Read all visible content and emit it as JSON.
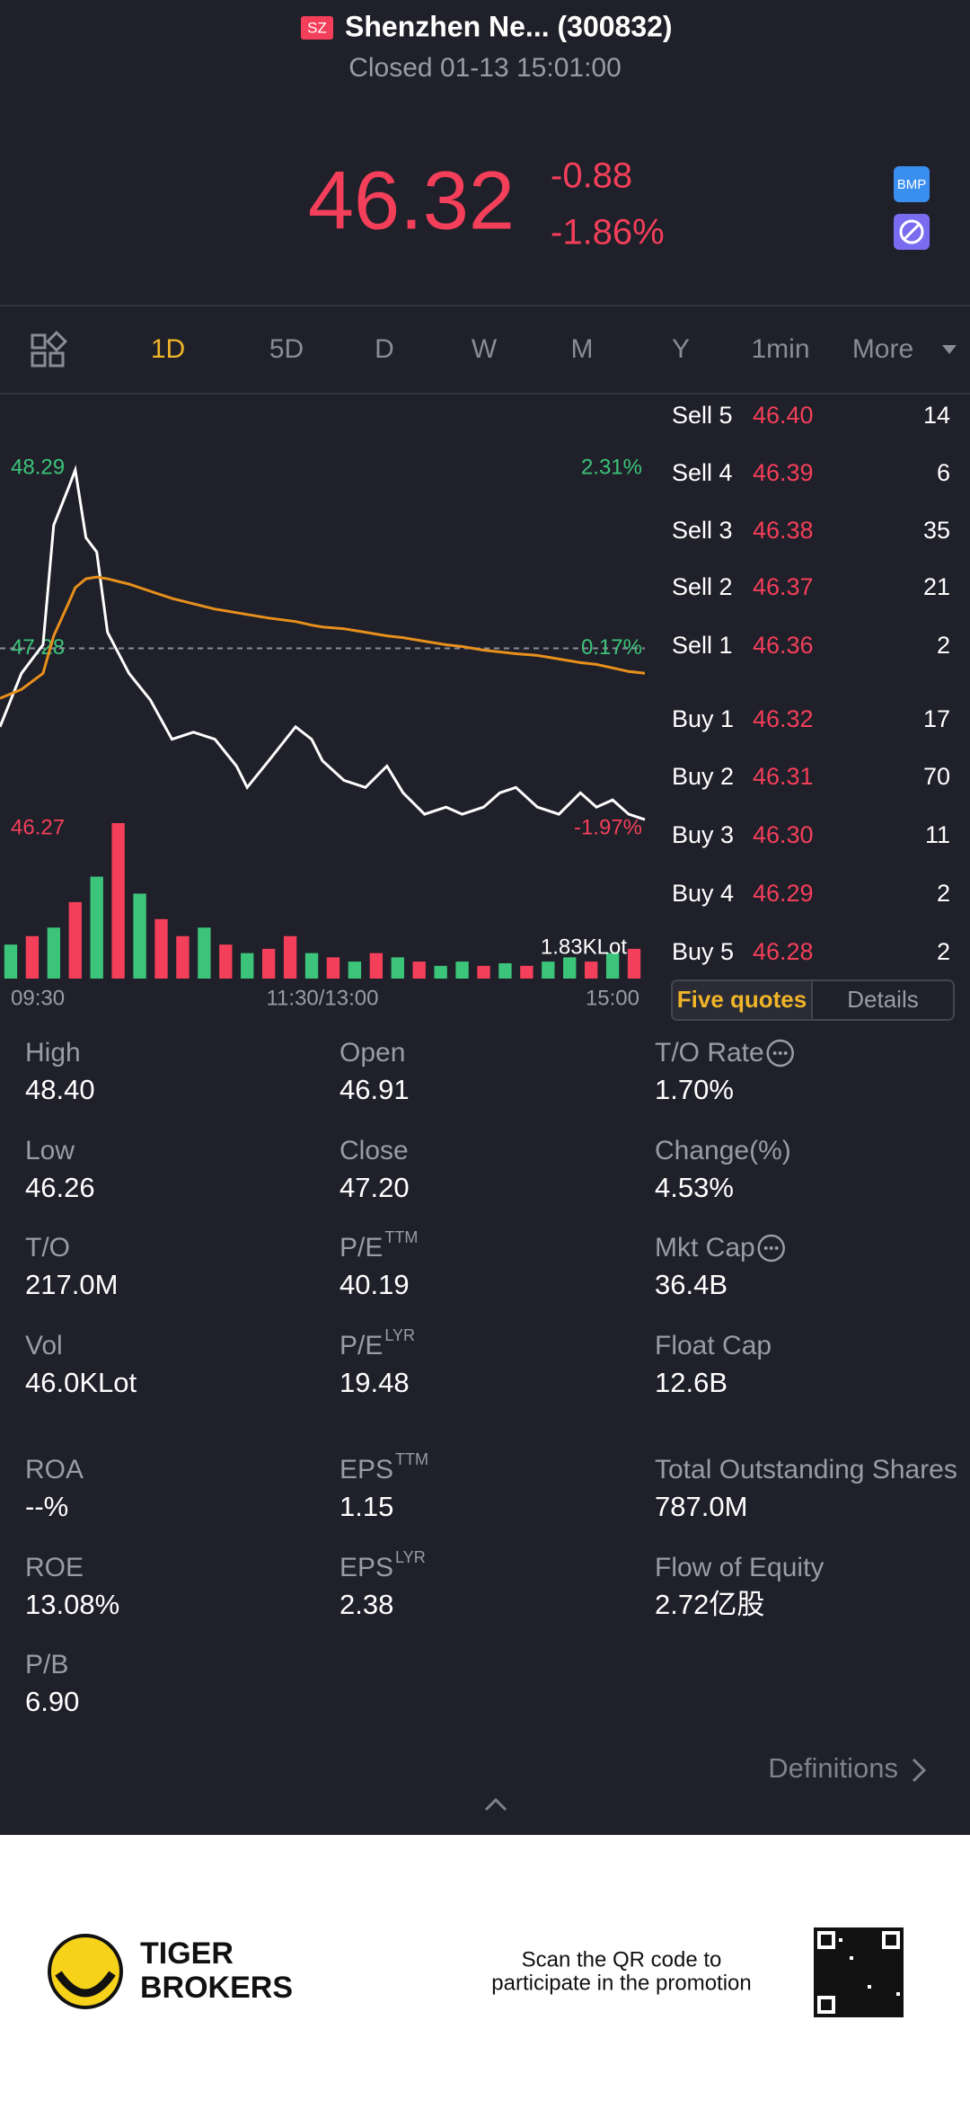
{
  "header": {
    "badge": "SZ",
    "name": "Shenzhen Ne... (300832)",
    "status": "Closed 01-13 15:01:00"
  },
  "quote": {
    "price": "46.32",
    "change": "-0.88",
    "change_pct": "-1.86%",
    "badge": "BMP"
  },
  "tabs": [
    "1D",
    "5D",
    "D",
    "W",
    "M",
    "Y",
    "1min",
    "More"
  ],
  "chart_data": {
    "type": "line",
    "x": [
      0,
      8,
      16,
      20,
      26,
      28,
      32,
      36,
      40,
      48,
      56,
      64,
      72,
      80,
      88,
      92,
      100,
      110,
      116,
      120,
      128,
      136,
      144,
      150,
      158,
      166,
      172,
      180,
      186,
      192,
      200,
      208,
      216,
      222,
      228,
      234,
      240
    ],
    "series": [
      {
        "color": "#ffffff",
        "values": [
          46.84,
          47.14,
          47.3,
          47.97,
          48.2,
          48.28,
          47.9,
          47.82,
          47.37,
          47.14,
          46.99,
          46.77,
          46.81,
          46.77,
          46.62,
          46.5,
          46.65,
          46.84,
          46.77,
          46.65,
          46.54,
          46.5,
          46.62,
          46.47,
          46.35,
          46.39,
          46.35,
          46.39,
          46.47,
          46.5,
          46.39,
          46.35,
          46.47,
          46.39,
          46.43,
          46.35,
          46.32
        ]
      },
      {
        "color": "#e8901c",
        "values": [
          47.0,
          47.05,
          47.14,
          47.35,
          47.55,
          47.62,
          47.67,
          47.68,
          47.67,
          47.64,
          47.6,
          47.56,
          47.53,
          47.5,
          47.48,
          47.47,
          47.45,
          47.43,
          47.41,
          47.4,
          47.39,
          47.37,
          47.35,
          47.34,
          47.32,
          47.3,
          47.29,
          47.27,
          47.26,
          47.25,
          47.24,
          47.22,
          47.2,
          47.19,
          47.17,
          47.15,
          47.14
        ]
      }
    ],
    "xlim": [
      0,
      240
    ],
    "xticks": [
      {
        "value": 0,
        "label": "09:30"
      },
      {
        "value": 120,
        "label": "11:30/13:00"
      },
      {
        "value": 240,
        "label": "15:00"
      }
    ],
    "ylim": [
      46.27,
      48.29
    ],
    "yticks": [
      48.29,
      47.28,
      46.27
    ],
    "y2lim": [
      -1.97,
      2.31
    ],
    "y2ticks": [
      {
        "value": 2.31,
        "label": "2.31%"
      },
      {
        "value": 0.17,
        "label": "0.17%"
      },
      {
        "value": -1.97,
        "label": "-1.97%"
      }
    ],
    "volume": {
      "label": "1.83KLot",
      "ylim": [
        0,
        1830
      ],
      "values": [
        400,
        500,
        600,
        900,
        1200,
        1830,
        1000,
        700,
        500,
        600,
        400,
        300,
        350,
        500,
        300,
        250,
        200,
        300,
        250,
        200,
        150,
        200,
        150,
        180,
        150,
        200,
        250,
        200,
        300,
        350
      ],
      "colors": [
        "#3cc47a",
        "#f43f5a",
        "#3cc47a",
        "#f43f5a",
        "#3cc47a",
        "#f43f5a",
        "#3cc47a",
        "#f43f5a",
        "#f43f5a",
        "#3cc47a",
        "#f43f5a",
        "#3cc47a",
        "#f43f5a",
        "#f43f5a",
        "#3cc47a",
        "#f43f5a",
        "#3cc47a",
        "#f43f5a",
        "#3cc47a",
        "#f43f5a",
        "#3cc47a",
        "#3cc47a",
        "#f43f5a",
        "#3cc47a",
        "#f43f5a",
        "#3cc47a",
        "#3cc47a",
        "#f43f5a",
        "#3cc47a",
        "#f43f5a"
      ]
    }
  },
  "order_book": [
    {
      "side": "Sell 5",
      "price": "46.40",
      "qty": "14"
    },
    {
      "side": "Sell 4",
      "price": "46.39",
      "qty": "6"
    },
    {
      "side": "Sell 3",
      "price": "46.38",
      "qty": "35"
    },
    {
      "side": "Sell 2",
      "price": "46.37",
      "qty": "21"
    },
    {
      "side": "Sell 1",
      "price": "46.36",
      "qty": "2"
    },
    {
      "side": "Buy 1",
      "price": "46.32",
      "qty": "17"
    },
    {
      "side": "Buy 2",
      "price": "46.31",
      "qty": "70"
    },
    {
      "side": "Buy 3",
      "price": "46.30",
      "qty": "11"
    },
    {
      "side": "Buy 4",
      "price": "46.29",
      "qty": "2"
    },
    {
      "side": "Buy 5",
      "price": "46.28",
      "qty": "2"
    }
  ],
  "book_tabs": [
    "Five quotes",
    "Details"
  ],
  "stats": [
    {
      "label": "High",
      "value": "48.40"
    },
    {
      "label": "Open",
      "value": "46.91"
    },
    {
      "label": "T/O Rate",
      "value": "1.70%",
      "info": true
    },
    {
      "label": "Low",
      "value": "46.26"
    },
    {
      "label": "Close",
      "value": "47.20"
    },
    {
      "label": "Change(%)",
      "value": "4.53%"
    },
    {
      "label": "T/O",
      "value": "217.0M"
    },
    {
      "label": "P/E",
      "sup": "TTM",
      "value": "40.19"
    },
    {
      "label": "Mkt Cap",
      "value": "36.4B",
      "info": true
    },
    {
      "label": "Vol",
      "value": "46.0KLot"
    },
    {
      "label": "P/E",
      "sup": "LYR",
      "value": "19.48"
    },
    {
      "label": "Float Cap",
      "value": "12.6B"
    },
    {
      "label": "ROA",
      "value": "--%"
    },
    {
      "label": "EPS",
      "sup": "TTM",
      "value": "1.15"
    },
    {
      "label": "Total Outstanding Shares",
      "value": "787.0M"
    },
    {
      "label": "ROE",
      "value": "13.08%"
    },
    {
      "label": "EPS",
      "sup": "LYR",
      "value": "2.38"
    },
    {
      "label": "Flow of Equity",
      "value": "2.72亿股"
    },
    {
      "label": "P/B",
      "value": "6.90"
    }
  ],
  "definitions": "Definitions",
  "footer": {
    "brand_line1": "TIGER",
    "brand_line2": "BROKERS",
    "scan_line1": "Scan the QR code to",
    "scan_line2": "participate in the promotion"
  }
}
